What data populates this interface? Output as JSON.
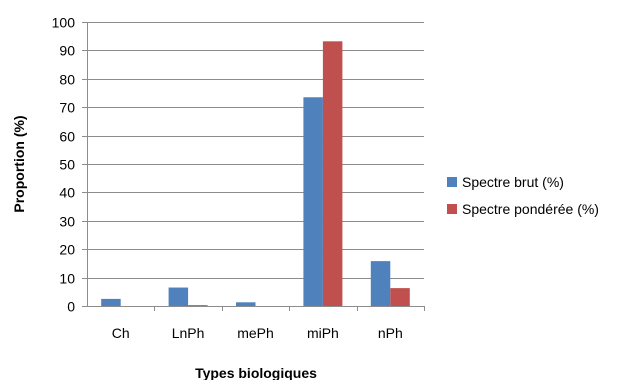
{
  "chart_data": {
    "type": "bar",
    "title": "",
    "xlabel": "Types biologiques",
    "ylabel": "Proportion (%)",
    "ylim": [
      0,
      100
    ],
    "yticks": [
      0,
      10,
      20,
      30,
      40,
      50,
      60,
      70,
      80,
      90,
      100
    ],
    "grid": true,
    "legend_position": "right",
    "categories": [
      "Ch",
      "LnPh",
      "mePh",
      "miPh",
      "nPh"
    ],
    "series": [
      {
        "name": "Spectre brut (%)",
        "color": "#4f81bd",
        "values": [
          2.5,
          6.5,
          1.3,
          73.5,
          15.8
        ]
      },
      {
        "name": "Spectre pondérée (%)",
        "color": "#c0504d",
        "values": [
          0.0,
          0.3,
          0.0,
          93.2,
          6.3
        ]
      }
    ]
  }
}
